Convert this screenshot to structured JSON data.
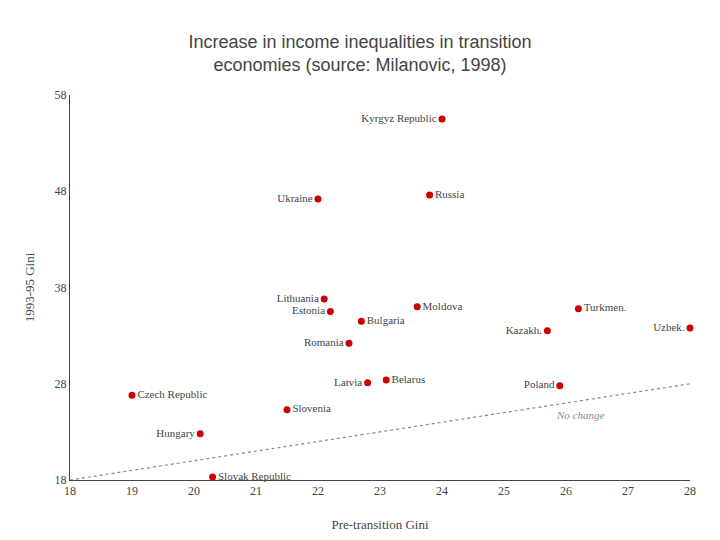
{
  "chart_data": {
    "type": "scatter",
    "title": "Increase in income inequalities in transition\neconomies (source: Milanovic, 1998)",
    "x_label": "Pre-transition Gini",
    "y_label": "1993-95 Gini",
    "xlim": [
      18,
      28
    ],
    "ylim": [
      18,
      58
    ],
    "xticks": [
      18,
      19,
      20,
      21,
      22,
      23,
      24,
      25,
      26,
      27,
      28
    ],
    "yticks": [
      18,
      28,
      38,
      48,
      58
    ],
    "grid": false,
    "series": [
      {
        "type": "line",
        "line_style": "dotted",
        "color": "#888888",
        "x": [
          18,
          28
        ],
        "values": [
          18,
          28
        ]
      },
      {
        "type": "scatter",
        "marker": "circle",
        "color": "#cc0000",
        "x": [
          19.0,
          20.1,
          20.3,
          21.5,
          22.1,
          22.2,
          22.5,
          22.7,
          22.8,
          23.1,
          22.0,
          23.8,
          23.6,
          25.9,
          25.7,
          26.2,
          28.0,
          24.0
        ],
        "values": [
          26.8,
          22.8,
          18.3,
          25.3,
          36.8,
          35.5,
          32.2,
          34.5,
          28.1,
          28.4,
          47.2,
          47.6,
          36.0,
          27.8,
          33.5,
          35.8,
          33.8,
          55.5
        ],
        "labels": [
          "Czech Republic",
          "Hungary",
          "Slovak Republic",
          "Slovenia",
          "Lithuania",
          "Estonia",
          "Romania",
          "Bulgaria",
          "Latvia",
          "Belarus",
          "Ukraine",
          "Russia",
          "Moldova",
          "Poland",
          "Kazakh.",
          "Turkmen.",
          "Uzbek.",
          "Kyrgyz Republic"
        ]
      }
    ],
    "annotations": [
      {
        "text": "No change",
        "x": 25.8,
        "y": 24.8
      }
    ]
  }
}
